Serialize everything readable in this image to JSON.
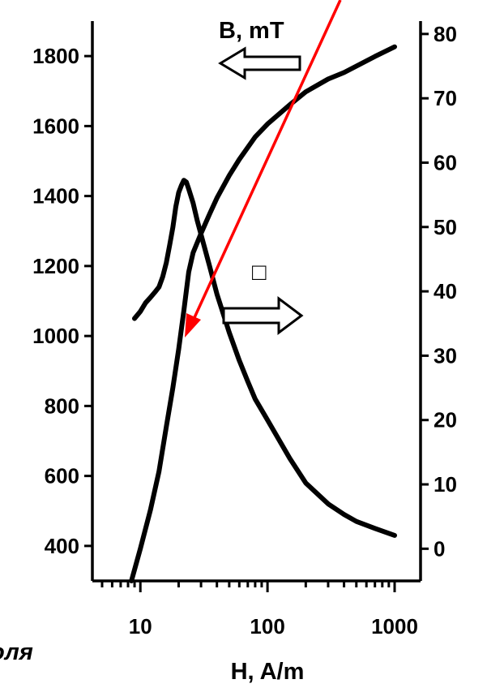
{
  "chart_data": {
    "type": "line",
    "title": "",
    "x_axis": {
      "label": "H, A/m",
      "scale": "log",
      "range": [
        5,
        1000
      ],
      "ticks": [
        {
          "value": 10,
          "label": "10"
        },
        {
          "value": 100,
          "label": "100"
        },
        {
          "value": 1000,
          "label": "1000"
        }
      ]
    },
    "y_axis_left": {
      "label": "",
      "range": [
        300,
        1900
      ],
      "ticks": [
        {
          "value": 400,
          "label": "400"
        },
        {
          "value": 600,
          "label": "600"
        },
        {
          "value": 800,
          "label": "800"
        },
        {
          "value": 1000,
          "label": "1000"
        },
        {
          "value": 1200,
          "label": "1200"
        },
        {
          "value": 1400,
          "label": "1400"
        },
        {
          "value": 1600,
          "label": "1600"
        },
        {
          "value": 1800,
          "label": "1800"
        }
      ]
    },
    "y_axis_right": {
      "label": "",
      "range": [
        -5,
        82
      ],
      "ticks": [
        {
          "value": 0,
          "label": "0"
        },
        {
          "value": 10,
          "label": "10"
        },
        {
          "value": 20,
          "label": "20"
        },
        {
          "value": 30,
          "label": "30"
        },
        {
          "value": 40,
          "label": "40"
        },
        {
          "value": 50,
          "label": "50"
        },
        {
          "value": 60,
          "label": "60"
        },
        {
          "value": 70,
          "label": "70"
        },
        {
          "value": 80,
          "label": "80"
        }
      ]
    },
    "series": [
      {
        "name": "B, mT",
        "axis": "right",
        "points": [
          [
            8.5,
            -5
          ],
          [
            10,
            0
          ],
          [
            12,
            6
          ],
          [
            14,
            12
          ],
          [
            16,
            19
          ],
          [
            18,
            25
          ],
          [
            20,
            31
          ],
          [
            22,
            37
          ],
          [
            24,
            43
          ],
          [
            26,
            46
          ],
          [
            30,
            49
          ],
          [
            35,
            52
          ],
          [
            40,
            54.5
          ],
          [
            50,
            58
          ],
          [
            60,
            60.5
          ],
          [
            80,
            64
          ],
          [
            100,
            66
          ],
          [
            150,
            69
          ],
          [
            200,
            71
          ],
          [
            300,
            73
          ],
          [
            400,
            74
          ],
          [
            500,
            75
          ],
          [
            700,
            76.5
          ],
          [
            1000,
            78
          ]
        ]
      },
      {
        "name": "μ",
        "axis": "left",
        "points": [
          [
            9,
            1050
          ],
          [
            10,
            1070
          ],
          [
            11,
            1095
          ],
          [
            12,
            1110
          ],
          [
            13,
            1125
          ],
          [
            14,
            1140
          ],
          [
            15,
            1170
          ],
          [
            16,
            1210
          ],
          [
            17,
            1260
          ],
          [
            18,
            1310
          ],
          [
            19,
            1370
          ],
          [
            20,
            1410
          ],
          [
            21,
            1430
          ],
          [
            22,
            1445
          ],
          [
            23,
            1440
          ],
          [
            24,
            1420
          ],
          [
            26,
            1380
          ],
          [
            28,
            1330
          ],
          [
            30,
            1290
          ],
          [
            35,
            1200
          ],
          [
            40,
            1120
          ],
          [
            50,
            1010
          ],
          [
            60,
            930
          ],
          [
            70,
            870
          ],
          [
            80,
            820
          ],
          [
            100,
            760
          ],
          [
            150,
            650
          ],
          [
            200,
            580
          ],
          [
            300,
            520
          ],
          [
            400,
            490
          ],
          [
            500,
            470
          ],
          [
            700,
            450
          ],
          [
            1000,
            430
          ]
        ]
      }
    ],
    "annotations": {
      "b_label": "B, mT",
      "mu_label": "□",
      "b_arrow": "left",
      "mu_arrow": "right"
    },
    "overlay_arrow_color": "#ff0000",
    "cropped_text_fragment": "оля",
    "grid": false,
    "legend": "none"
  }
}
